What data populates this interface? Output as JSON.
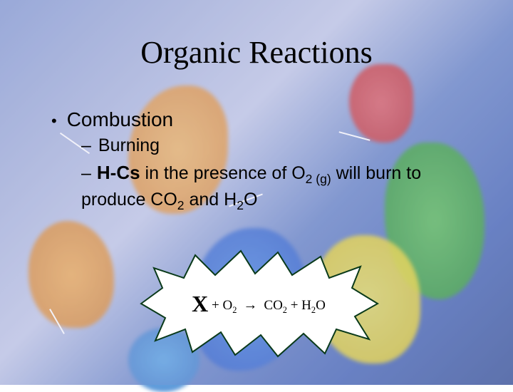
{
  "title": "Organic Reactions",
  "bullets": {
    "combustion": "Combustion",
    "burning": "Burning",
    "hcs_line_html": "<span class=\"bold\">H-Cs</span> in the presence of O<sub>2 (g)</sub> will burn to produce CO<sub>2</sub> and H<sub>2</sub>O"
  },
  "equation": {
    "x": "X",
    "plus1": " + O",
    "sub1": "2",
    "arrow": " → ",
    "co": "CO",
    "sub2": "2",
    "plus2": " + H",
    "sub3": "2",
    "o": "O"
  },
  "colors": {
    "title": "#000000",
    "text": "#000000",
    "starburst_fill": "#ffffff",
    "starburst_stroke": "#0a3a1a",
    "bg_gradient_start": "#8a9fd4",
    "bg_gradient_end": "#3a5598"
  },
  "layout": {
    "slide_width": 720,
    "slide_height": 540,
    "title_fontsize": 44,
    "body_fontsize_l1": 28,
    "body_fontsize_l2": 25
  }
}
